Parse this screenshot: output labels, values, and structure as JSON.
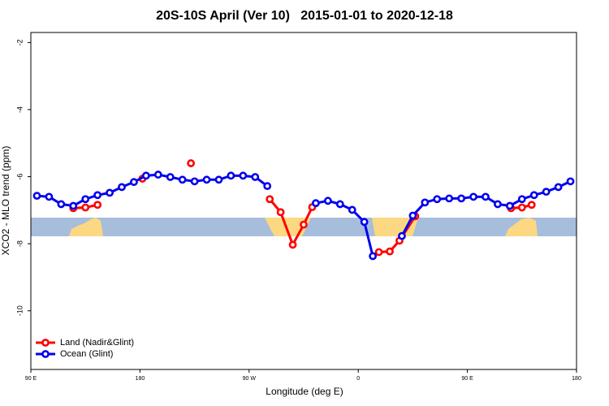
{
  "chart_data": {
    "type": "line",
    "title": "20S-10S April (Ver 10)   2015-01-01 to 2020-12-18",
    "x_label": "Longitude (deg E)",
    "y_label": "XCO2 - MLO trend (ppm)",
    "xlim": [
      90,
      540
    ],
    "xticks": [
      {
        "value": 90,
        "label": "90 E"
      },
      180,
      {
        "value": 270,
        "label": "90 W"
      },
      {
        "value": 360,
        "label": "0"
      },
      {
        "value": 450,
        "label": "90 E"
      },
      {
        "value": 540,
        "label": "180"
      }
    ],
    "ylim": [
      -11.75,
      -1.7
    ],
    "yticks": [
      -2,
      -4,
      -6,
      -8,
      -10
    ],
    "legend": "bottom-left",
    "series": [
      {
        "name": "Land (Nadir&Glint)",
        "color": "#ff0000",
        "x": [
          125,
          135,
          145,
          160,
          182,
          200,
          222,
          260,
          287,
          296,
          306,
          315,
          322,
          350,
          377,
          386,
          394,
          407,
          450,
          486,
          495,
          503
        ],
        "values": [
          -6.94,
          -6.92,
          -6.84,
          null,
          -6.06,
          null,
          -5.6,
          null,
          -6.67,
          -7.06,
          -8.03,
          -7.43,
          -6.91,
          null,
          -8.25,
          -8.23,
          -7.91,
          -7.18,
          null,
          -6.94,
          -6.92,
          -6.84
        ]
      },
      {
        "name": "Ocean (Glint)",
        "color": "#0000ee",
        "x": [
          95,
          105,
          115,
          125,
          135,
          145,
          155,
          165,
          175,
          185,
          195,
          205,
          215,
          225,
          235,
          245,
          255,
          265,
          275,
          285,
          305,
          325,
          335,
          345,
          355,
          365,
          372,
          385,
          396,
          405,
          415,
          425,
          435,
          445,
          455,
          465,
          475,
          485,
          495,
          505,
          515,
          525,
          535
        ],
        "values": [
          -6.57,
          -6.6,
          -6.82,
          -6.87,
          -6.67,
          -6.55,
          -6.48,
          -6.31,
          -6.16,
          -5.97,
          -5.94,
          -6.01,
          -6.09,
          -6.14,
          -6.09,
          -6.09,
          -5.97,
          -5.97,
          -6.01,
          -6.28,
          null,
          -6.79,
          -6.72,
          -6.82,
          -6.99,
          -7.35,
          -8.37,
          null,
          -7.77,
          -7.16,
          -6.77,
          -6.67,
          -6.65,
          -6.65,
          -6.6,
          -6.6,
          -6.82,
          -6.87,
          -6.67,
          -6.55,
          -6.45,
          -6.31,
          -6.14
        ]
      }
    ]
  }
}
